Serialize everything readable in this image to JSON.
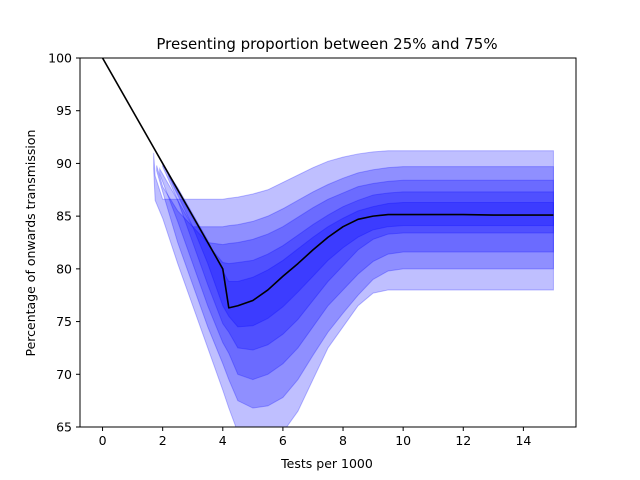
{
  "chart_data": {
    "type": "area",
    "title": "Presenting proportion between 25% and 75%",
    "xlabel": "Tests per 1000",
    "ylabel": "Percentage of onwards transmission",
    "xlim": [
      -0.75,
      15.75
    ],
    "ylim": [
      65,
      100
    ],
    "xticks": [
      0,
      2,
      4,
      6,
      8,
      10,
      12,
      14
    ],
    "yticks": [
      65,
      70,
      75,
      80,
      85,
      90,
      95,
      100
    ],
    "grid": false,
    "band_color": "#0000ff",
    "line_color": "#000000",
    "median": {
      "x": [
        0,
        1,
        1.7,
        2,
        2.5,
        3,
        3.5,
        4,
        4.2,
        4.5,
        5,
        5.5,
        6,
        6.5,
        7,
        7.5,
        8,
        8.5,
        9,
        9.5,
        10,
        11,
        12,
        13,
        14,
        15
      ],
      "y": [
        100,
        95,
        91.5,
        90,
        87.5,
        85,
        82.5,
        80,
        76.3,
        76.5,
        77,
        78,
        79.3,
        80.5,
        81.8,
        83,
        84,
        84.7,
        85,
        85.15,
        85.15,
        85.15,
        85.15,
        85.1,
        85.1,
        85.1
      ]
    },
    "bands": [
      {
        "x": [
          1.7,
          1.75,
          2,
          2.5,
          3,
          3.5,
          4,
          4.2,
          4.5,
          5,
          5.5,
          6,
          6.5,
          7,
          7.5,
          8,
          8.5,
          9,
          9.5,
          10,
          11,
          12,
          13,
          14,
          15
        ],
        "upper": [
          91,
          88.8,
          86.6,
          86.6,
          86.6,
          86.6,
          86.6,
          86.7,
          86.8,
          87.1,
          87.5,
          88.2,
          88.9,
          89.6,
          90.2,
          90.6,
          90.9,
          91.1,
          91.2,
          91.2,
          91.2,
          91.2,
          91.2,
          91.2,
          91.2
        ],
        "lower": [
          89.5,
          86.5,
          84.8,
          80.5,
          76.5,
          72.5,
          68.5,
          66.8,
          64.5,
          63.5,
          63.8,
          64.5,
          66.5,
          69.5,
          72.5,
          74.5,
          76.5,
          77.7,
          78,
          78,
          78,
          78,
          78,
          78,
          78
        ]
      },
      {
        "x": [
          1.8,
          2,
          2.5,
          3,
          3.5,
          4,
          4.2,
          4.5,
          5,
          5.5,
          6,
          6.5,
          7,
          7.5,
          8,
          8.5,
          9,
          9.5,
          10,
          11,
          12,
          13,
          14,
          15
        ],
        "upper": [
          89.8,
          87.8,
          85.5,
          84,
          84,
          84,
          84.1,
          84.2,
          84.5,
          85,
          85.7,
          86.5,
          87.3,
          88,
          88.6,
          89.1,
          89.4,
          89.6,
          89.7,
          89.7,
          89.7,
          89.7,
          89.7,
          89.7
        ],
        "lower": [
          89.3,
          87.3,
          82.5,
          78.5,
          74.5,
          71,
          69.5,
          67.5,
          66.8,
          67,
          67.8,
          69.5,
          71.8,
          74,
          75.8,
          77.5,
          79,
          79.8,
          80,
          80,
          80,
          80,
          80,
          80
        ]
      },
      {
        "x": [
          1.9,
          2.5,
          3,
          3.5,
          4,
          4.2,
          4.5,
          5,
          5.5,
          6,
          6.5,
          7,
          7.5,
          8,
          8.5,
          9,
          9.5,
          10,
          11,
          12,
          13,
          14,
          15
        ],
        "upper": [
          89.5,
          86.5,
          84,
          82.5,
          82.3,
          82.4,
          82.5,
          82.8,
          83.3,
          84,
          84.9,
          85.8,
          86.6,
          87.2,
          87.8,
          88.1,
          88.3,
          88.4,
          88.4,
          88.4,
          88.4,
          88.4,
          88.4
        ],
        "lower": [
          89,
          84.5,
          80.5,
          76.5,
          73,
          72,
          70,
          69.5,
          70,
          71,
          72.5,
          74.5,
          76.5,
          78,
          79.5,
          80.7,
          81.4,
          81.6,
          81.6,
          81.6,
          81.6,
          81.6,
          81.6
        ]
      },
      {
        "x": [
          2,
          2.5,
          3,
          3.5,
          4,
          4.2,
          4.5,
          5,
          5.5,
          6,
          6.5,
          7,
          7.5,
          8,
          8.5,
          9,
          9.5,
          10,
          11,
          12,
          13,
          14,
          15
        ],
        "upper": [
          89.9,
          87.3,
          84.8,
          82.3,
          80.6,
          80.5,
          80.6,
          80.8,
          81.4,
          82.2,
          83.2,
          84.2,
          85.1,
          85.9,
          86.5,
          87,
          87.2,
          87.3,
          87.3,
          87.3,
          87.3,
          87.3,
          87.3
        ],
        "lower": [
          89.7,
          86.5,
          82.5,
          78.5,
          74.8,
          74,
          72.5,
          72.3,
          72.8,
          73.8,
          75.2,
          77,
          78.8,
          80.3,
          81.8,
          82.8,
          83.3,
          83.4,
          83.4,
          83.4,
          83.4,
          83.4,
          83.4
        ]
      },
      {
        "x": [
          2.2,
          2.5,
          3,
          3.5,
          4,
          4.2,
          4.5,
          5,
          5.5,
          6,
          6.5,
          7,
          7.5,
          8,
          8.5,
          9,
          9.5,
          10,
          11,
          12,
          13,
          14,
          15
        ],
        "upper": [
          89,
          87.7,
          85.2,
          82.7,
          79.8,
          78.8,
          78.8,
          79.2,
          79.9,
          80.8,
          81.9,
          83,
          84,
          84.8,
          85.5,
          85.9,
          86.2,
          86.3,
          86.3,
          86.3,
          86.3,
          86.3,
          86.3
        ],
        "lower": [
          88.8,
          87,
          84,
          80.5,
          76.5,
          75.5,
          74.5,
          74.6,
          75.3,
          76.4,
          77.8,
          79.3,
          80.8,
          82,
          83,
          83.7,
          84,
          84.1,
          84.1,
          84.1,
          84.1,
          84.1,
          84.1
        ]
      }
    ]
  }
}
